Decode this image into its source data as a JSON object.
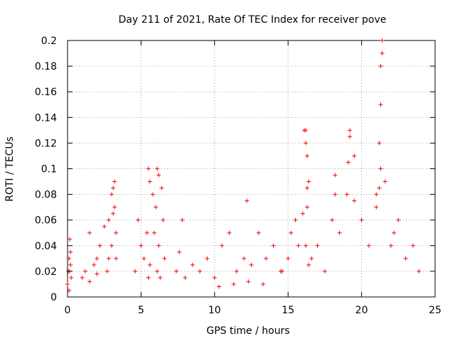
{
  "chart_data": {
    "type": "scatter",
    "title": "Day 211 of 2021, Rate Of TEC Index for receiver pove",
    "xlabel": "GPS time / hours",
    "ylabel": "ROTI / TECUs",
    "xlim": [
      0,
      25
    ],
    "ylim": [
      0,
      0.2
    ],
    "x_ticks": [
      0,
      5,
      10,
      15,
      20,
      25
    ],
    "x_tick_labels": [
      "0",
      "5",
      "10",
      "15",
      "20",
      "25"
    ],
    "y_ticks": [
      0,
      0.02,
      0.04,
      0.06,
      0.08,
      0.1,
      0.12,
      0.14,
      0.16,
      0.18,
      0.2
    ],
    "y_tick_labels": [
      "0",
      "0.02",
      "0.04",
      "0.06",
      "0.08",
      "0.1",
      "0.12",
      "0.14",
      "0.16",
      "0.18",
      "0.2"
    ],
    "grid": true,
    "marker": "+",
    "color": "#ff0000",
    "series": [
      {
        "x": [
          0.0,
          0.05,
          0.1,
          0.15,
          0.2,
          0.25,
          0.1,
          0.2,
          0.15,
          1.0,
          1.2,
          1.5,
          1.8,
          2.0,
          2.2,
          2.5,
          2.7,
          2.8,
          3.0,
          3.1,
          3.2,
          3.3,
          1.5,
          2.0,
          2.8,
          3.0,
          3.1,
          3.2,
          3.3,
          4.6,
          4.8,
          5.0,
          5.2,
          5.4,
          5.5,
          5.6,
          5.8,
          6.0,
          6.1,
          6.2,
          6.4,
          6.5,
          6.6,
          5.5,
          5.6,
          6.1,
          6.2,
          5.9,
          6.3,
          7.4,
          7.6,
          8.0,
          8.5,
          9.0,
          9.5,
          10.0,
          10.5,
          11.0,
          11.5,
          12.0,
          12.2,
          12.5,
          13.0,
          13.5,
          14.0,
          10.3,
          11.3,
          12.3,
          13.3,
          14.5,
          7.8,
          14.6,
          15.0,
          15.2,
          15.5,
          15.7,
          16.0,
          16.1,
          16.2,
          16.3,
          16.4,
          16.2,
          16.3,
          16.3,
          16.2,
          16.4,
          16.6,
          17.0,
          17.5,
          18.0,
          18.2,
          18.5,
          19.0,
          19.2,
          19.5,
          20.0,
          20.5,
          21.0,
          21.2,
          21.4,
          21.6,
          18.2,
          19.1,
          19.2,
          19.5,
          21.0,
          21.3,
          21.3,
          21.4,
          21.3,
          21.2,
          22.0,
          22.5,
          23.0,
          23.5,
          23.9,
          22.2
        ],
        "y": [
          0.01,
          0.02,
          0.03,
          0.045,
          0.025,
          0.015,
          0.005,
          0.035,
          0.02,
          0.015,
          0.02,
          0.05,
          0.025,
          0.03,
          0.04,
          0.055,
          0.02,
          0.06,
          0.08,
          0.085,
          0.09,
          0.05,
          0.012,
          0.018,
          0.03,
          0.04,
          0.065,
          0.07,
          0.03,
          0.02,
          0.06,
          0.04,
          0.03,
          0.05,
          0.1,
          0.09,
          0.08,
          0.07,
          0.1,
          0.095,
          0.085,
          0.06,
          0.03,
          0.015,
          0.025,
          0.02,
          0.04,
          0.05,
          0.015,
          0.02,
          0.035,
          0.015,
          0.025,
          0.02,
          0.03,
          0.015,
          0.04,
          0.05,
          0.02,
          0.03,
          0.075,
          0.025,
          0.05,
          0.03,
          0.04,
          0.008,
          0.01,
          0.012,
          0.01,
          0.02,
          0.06,
          0.02,
          0.03,
          0.05,
          0.06,
          0.04,
          0.065,
          0.13,
          0.12,
          0.11,
          0.09,
          0.13,
          0.085,
          0.07,
          0.04,
          0.025,
          0.03,
          0.04,
          0.02,
          0.06,
          0.095,
          0.05,
          0.08,
          0.13,
          0.11,
          0.06,
          0.04,
          0.08,
          0.12,
          0.2,
          0.09,
          0.08,
          0.105,
          0.125,
          0.075,
          0.07,
          0.15,
          0.18,
          0.19,
          0.1,
          0.085,
          0.04,
          0.06,
          0.03,
          0.04,
          0.02,
          0.05
        ]
      }
    ]
  }
}
